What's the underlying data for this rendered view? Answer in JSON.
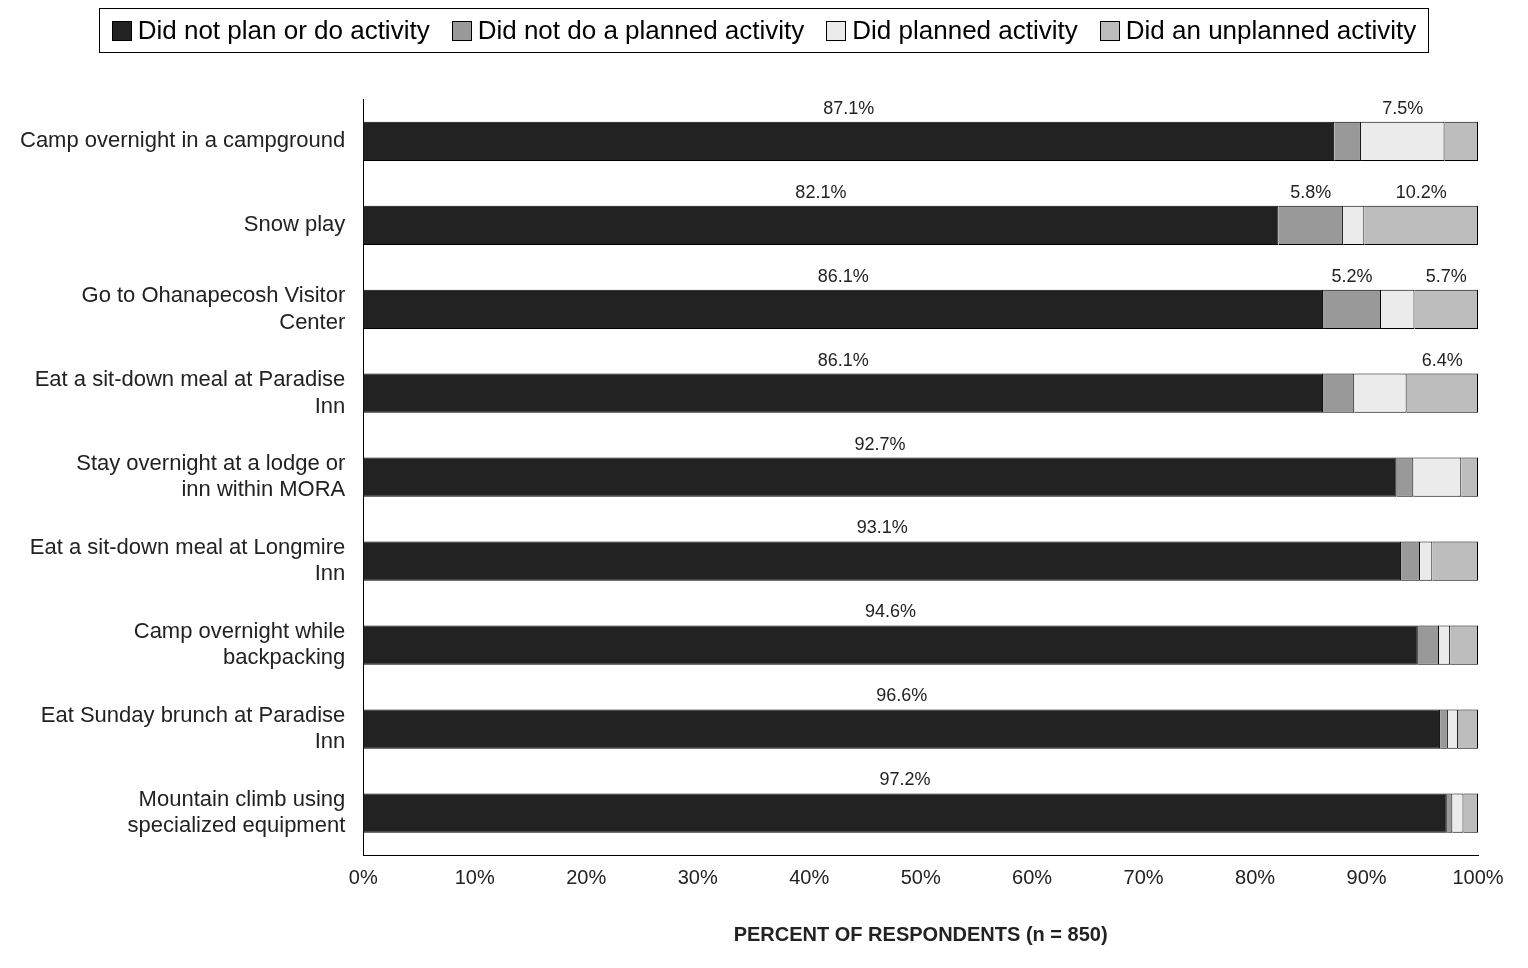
{
  "chart_data": {
    "type": "bar",
    "orientation": "horizontal",
    "stacked": true,
    "xlabel": "PERCENT OF RESPONDENTS (n = 850)",
    "categories": [
      "Camp overnight in a campground",
      "Snow play",
      "Go to Ohanapecosh Visitor Center",
      "Eat a sit-down meal at Paradise Inn",
      "Stay overnight at a lodge or inn within MORA",
      "Eat a sit-down meal at Longmire Inn",
      "Camp overnight while backpacking",
      "Eat Sunday brunch at Paradise Inn",
      "Mountain climb using specialized equipment"
    ],
    "series": [
      {
        "name": "Did not plan or do activity",
        "color": "#222222",
        "values": [
          87.1,
          82.1,
          86.1,
          86.1,
          92.7,
          93.1,
          94.6,
          96.6,
          97.2
        ],
        "value_labels": [
          "87.1%",
          "82.1%",
          "86.1%",
          "86.1%",
          "92.7%",
          "93.1%",
          "94.6%",
          "96.6%",
          "97.2%"
        ]
      },
      {
        "name": "Did not do a planned activity",
        "color": "#999999",
        "values": [
          2.4,
          5.8,
          5.2,
          2.8,
          1.5,
          1.7,
          1.9,
          0.7,
          0.5
        ],
        "value_labels": [
          null,
          "5.8%",
          "5.2%",
          null,
          null,
          null,
          null,
          null,
          null
        ]
      },
      {
        "name": "Did planned activity",
        "color": "#ebebeb",
        "values": [
          7.5,
          1.9,
          3.0,
          4.7,
          4.3,
          1.1,
          1.0,
          0.9,
          1.0
        ],
        "value_labels": [
          "7.5%",
          null,
          null,
          null,
          null,
          null,
          null,
          null,
          null
        ]
      },
      {
        "name": "Did an unplanned activity",
        "color": "#bdbdbd",
        "values": [
          3.0,
          10.2,
          5.7,
          6.4,
          1.5,
          4.1,
          2.5,
          1.8,
          1.3
        ],
        "value_labels": [
          null,
          "10.2%",
          "5.7%",
          "6.4%",
          null,
          null,
          null,
          null,
          null
        ]
      }
    ],
    "xlim": [
      0,
      100
    ],
    "xticks": [
      {
        "value": 0,
        "label": "0%"
      },
      {
        "value": 10,
        "label": "10%"
      },
      {
        "value": 20,
        "label": "20%"
      },
      {
        "value": 30,
        "label": "30%"
      },
      {
        "value": 40,
        "label": "40%"
      },
      {
        "value": 50,
        "label": "50%"
      },
      {
        "value": 60,
        "label": "60%"
      },
      {
        "value": 70,
        "label": "70%"
      },
      {
        "value": 80,
        "label": "80%"
      },
      {
        "value": 90,
        "label": "90%"
      },
      {
        "value": 100,
        "label": "100%"
      }
    ],
    "legend": "top",
    "grid": false
  }
}
